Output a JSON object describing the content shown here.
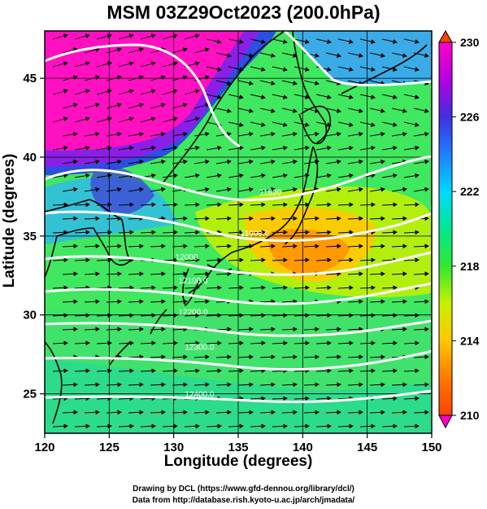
{
  "title": "MSM 03Z29Oct2023 (200.0hPa)",
  "axes": {
    "xlabel": "Longitude (degrees)",
    "ylabel": "Latitude  (degrees)",
    "xlim": [
      120,
      150
    ],
    "ylim": [
      22.5,
      48
    ],
    "xticks": [
      120,
      125,
      130,
      135,
      140,
      145,
      150
    ],
    "yticks": [
      25,
      30,
      35,
      40,
      45
    ]
  },
  "colorbar": {
    "min": 210,
    "max": 230,
    "ticks": [
      210,
      214,
      218,
      222,
      226,
      230
    ],
    "colors": [
      "#ff00c8",
      "#b400e0",
      "#4030e0",
      "#1e80ff",
      "#00d8ff",
      "#00e890",
      "#30e830",
      "#c8f000",
      "#ffc800",
      "#ff7800",
      "#ff4000"
    ]
  },
  "contour_labels": [
    {
      "text": "11820",
      "lon": 137.5,
      "lat": 37.6
    },
    {
      "text": "11900.0",
      "lon": 136.3,
      "lat": 35.0
    },
    {
      "text": "12000",
      "lon": 131.0,
      "lat": 33.5
    },
    {
      "text": "12100.0",
      "lon": 131.5,
      "lat": 32.0
    },
    {
      "text": "12200.0",
      "lon": 131.5,
      "lat": 30.0
    },
    {
      "text": "12300.0",
      "lon": 132.0,
      "lat": 27.8
    },
    {
      "text": "12400.0",
      "lon": 132.0,
      "lat": 24.8
    }
  ],
  "credits": [
    "Drawing by DCL (https://www.gfd-dennou.org/library/dcl/)",
    "Data from http://database.rish.kyoto-u.ac.jp/arch/jmadata/"
  ]
}
